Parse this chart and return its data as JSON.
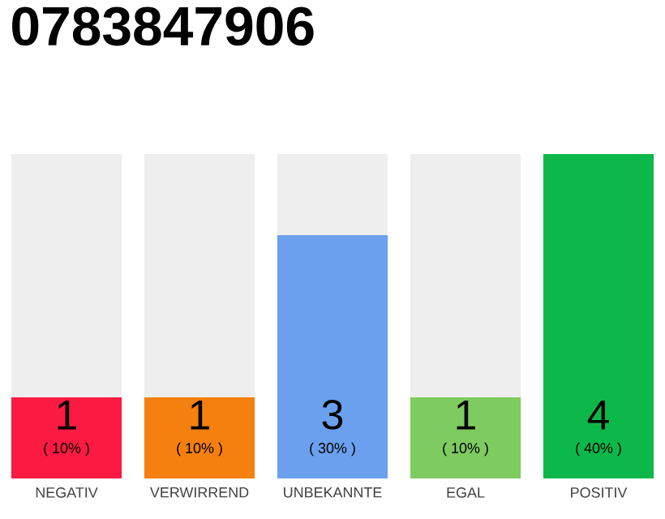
{
  "chart_data": {
    "type": "bar",
    "title": "0783847906",
    "categories": [
      "NEGATIV",
      "VERWIRREND",
      "UNBEKANNTE",
      "EGAL",
      "POSITIV"
    ],
    "stacked": true,
    "ylim": [
      0,
      4
    ],
    "tick_labels": "x",
    "series": [
      {
        "colors": [
          "#fb1a41",
          "#f57f0f",
          "#6aa0ee",
          "#7ecb5f",
          "#0db84a"
        ],
        "values": [
          1,
          1,
          3,
          1,
          4
        ],
        "value_labels": [
          "1",
          "1",
          "3",
          "1",
          "4"
        ]
      },
      {
        "color": "#eeeeee",
        "values": [
          3,
          3,
          1,
          3,
          0
        ]
      }
    ],
    "annotations": [
      "( 10% )",
      "( 10% )",
      "( 30% )",
      "( 10% )",
      "( 40% )"
    ]
  }
}
